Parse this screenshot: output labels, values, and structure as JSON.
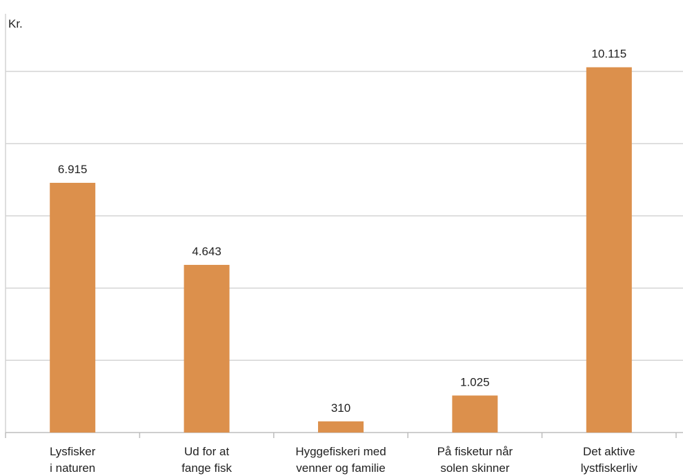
{
  "chart_data": {
    "type": "bar",
    "ylabel": "Kr.",
    "categories": [
      [
        "Lysfisker",
        "i naturen"
      ],
      [
        "Ud for at",
        "fange fisk"
      ],
      [
        "Hyggefiskeri med",
        "venner og familie"
      ],
      [
        "På fisketur når",
        "solen skinner"
      ],
      [
        "Det aktive",
        "lystfiskerliv"
      ]
    ],
    "values": [
      6915,
      4643,
      310,
      1025,
      10115
    ],
    "value_labels": [
      "6.915",
      "4.643",
      "310",
      "1.025",
      "10.115"
    ],
    "ylim": [
      0,
      11500
    ],
    "grid": true,
    "colors": {
      "bar": "#DC904C",
      "grid": "#D4D4D4",
      "axis": "#BDBDBD"
    }
  }
}
